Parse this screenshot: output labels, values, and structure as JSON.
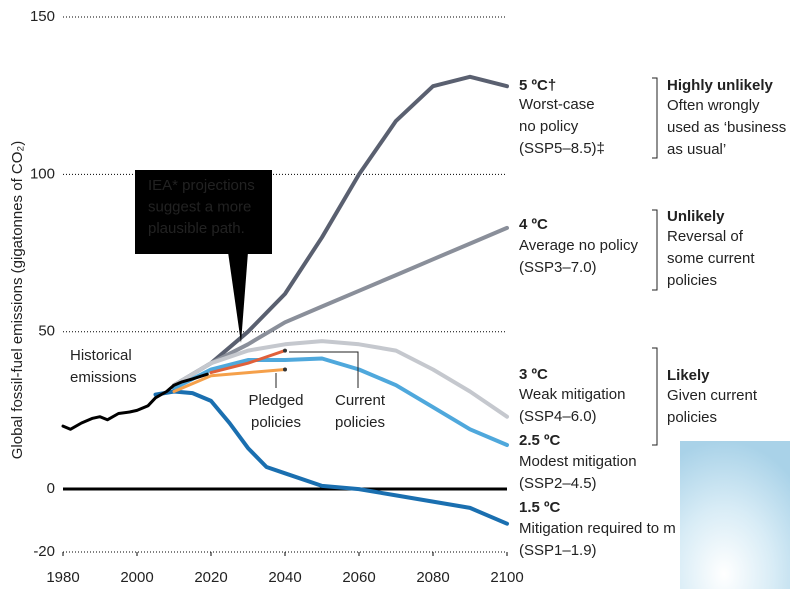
{
  "chart_data": {
    "type": "line",
    "y_label": "Global fossil-fuel emissions (gigatonnes of CO₂)",
    "xlim": [
      1980,
      2100
    ],
    "xticks": [
      1980,
      2000,
      2020,
      2040,
      2060,
      2080,
      2100
    ],
    "ylim": [
      -20,
      150
    ],
    "yticks": [
      -20,
      0,
      50,
      100,
      150
    ],
    "grid": true,
    "series": [
      {
        "color": "#5a6070",
        "temperature": "5 ºC†",
        "description": [
          "Worst-case",
          "no policy",
          "(SSP5–8.5)‡"
        ],
        "x": [
          2010,
          2020,
          2030,
          2040,
          2050,
          2060,
          2070,
          2080,
          2090,
          2100
        ],
        "values": [
          33,
          40,
          50,
          62,
          80,
          100,
          117,
          128,
          131,
          128
        ]
      },
      {
        "color": "#8a8f9a",
        "temperature": "4 ºC",
        "description": [
          "Average no policy",
          "(SSP3–7.0)"
        ],
        "x": [
          2010,
          2020,
          2030,
          2040,
          2050,
          2060,
          2070,
          2080,
          2090,
          2100
        ],
        "values": [
          33,
          40,
          46,
          53,
          58,
          63,
          68,
          73,
          78,
          83
        ]
      },
      {
        "color": "#c5c8ce",
        "temperature": "3 ºC",
        "description": [
          "Weak mitigation",
          "(SSP4–6.0)"
        ],
        "x": [
          2010,
          2020,
          2030,
          2040,
          2050,
          2060,
          2070,
          2080,
          2090,
          2100
        ],
        "values": [
          33,
          40,
          44,
          46,
          47,
          46,
          44,
          38,
          31,
          23
        ]
      },
      {
        "color": "#4fa8dc",
        "temperature": "2.5 ºC",
        "description": [
          "Modest mitigation",
          "(SSP2–4.5)"
        ],
        "x": [
          2010,
          2020,
          2030,
          2040,
          2050,
          2060,
          2070,
          2080,
          2090,
          2100
        ],
        "values": [
          32,
          38,
          41,
          41,
          41.5,
          38,
          33,
          26,
          19,
          14
        ]
      },
      {
        "color": "#1a6fb0",
        "temperature": "1.5 ºC",
        "description": [
          "Mitigation required to m",
          "(SSP1–1.9)"
        ],
        "x": [
          2005,
          2010,
          2015,
          2020,
          2025,
          2030,
          2035,
          2040,
          2050,
          2060,
          2070,
          2080,
          2090,
          2100
        ],
        "values": [
          30,
          31,
          30.5,
          28,
          21,
          13,
          7,
          5,
          1,
          0,
          -2,
          -4,
          -6,
          -11
        ]
      },
      {
        "color": "#f5a04a",
        "name": "Pledged policies",
        "x": [
          2010,
          2020,
          2030,
          2040
        ],
        "values": [
          31,
          36,
          37,
          38
        ]
      },
      {
        "color": "#e0603a",
        "name": "Current policies",
        "x": [
          2020,
          2030,
          2040
        ],
        "values": [
          37,
          40,
          44
        ]
      },
      {
        "color": "#000000",
        "name": "Historical emissions",
        "x": [
          1980,
          1982,
          1985,
          1988,
          1990,
          1992,
          1995,
          1998,
          2000,
          2003,
          2005,
          2008,
          2010,
          2012,
          2015,
          2019
        ],
        "values": [
          20,
          19,
          21,
          22.5,
          23,
          22,
          24,
          24.5,
          25,
          26.5,
          29,
          31,
          33,
          34,
          35,
          36.5
        ]
      }
    ],
    "callout": [
      "IEA* projections",
      "suggest a more",
      "plausible path."
    ],
    "likelihood": [
      {
        "title": "Highly unlikely",
        "text": [
          "Often wrongly",
          "used as ‘business",
          "as usual’"
        ]
      },
      {
        "title": "Unlikely",
        "text": [
          "Reversal of",
          "some current",
          "policies"
        ]
      },
      {
        "title": "Likely",
        "text": [
          "Given current",
          "policies"
        ]
      }
    ]
  }
}
